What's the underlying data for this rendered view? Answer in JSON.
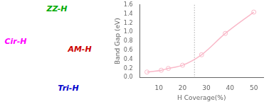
{
  "chart_data": {
    "type": "line",
    "x": [
      5,
      11,
      14,
      20,
      28,
      38,
      50
    ],
    "values": [
      0.12,
      0.16,
      0.2,
      0.27,
      0.5,
      0.97,
      1.44
    ],
    "color": "#f9b8c8",
    "marker": "circle",
    "line_style": "solid",
    "xlabel": "H Coverage(%)",
    "ylabel": "Band Gap (eV)",
    "xlim": [
      2,
      54
    ],
    "ylim": [
      0.0,
      1.6
    ],
    "xticks": [
      10,
      20,
      30,
      40,
      50
    ],
    "yticks": [
      {
        "value": 0.0,
        "label": "0.0"
      },
      0.2,
      0.4,
      0.6,
      0.8,
      {
        "value": 1.0,
        "label": "1.0"
      },
      1.2,
      1.4,
      1.6
    ],
    "grid": false,
    "vlines": [
      {
        "x": 25,
        "color": "#aaaaaa",
        "line_style": "dotted"
      }
    ],
    "annotations": [
      {
        "text": "ZZ-H",
        "color": "#00aa00"
      },
      {
        "text": "Cir-H",
        "color": "#ff00ff"
      },
      {
        "text": "AM-H",
        "color": "#cc0000"
      },
      {
        "text": "Tri-H",
        "color": "#0000cc"
      }
    ]
  }
}
